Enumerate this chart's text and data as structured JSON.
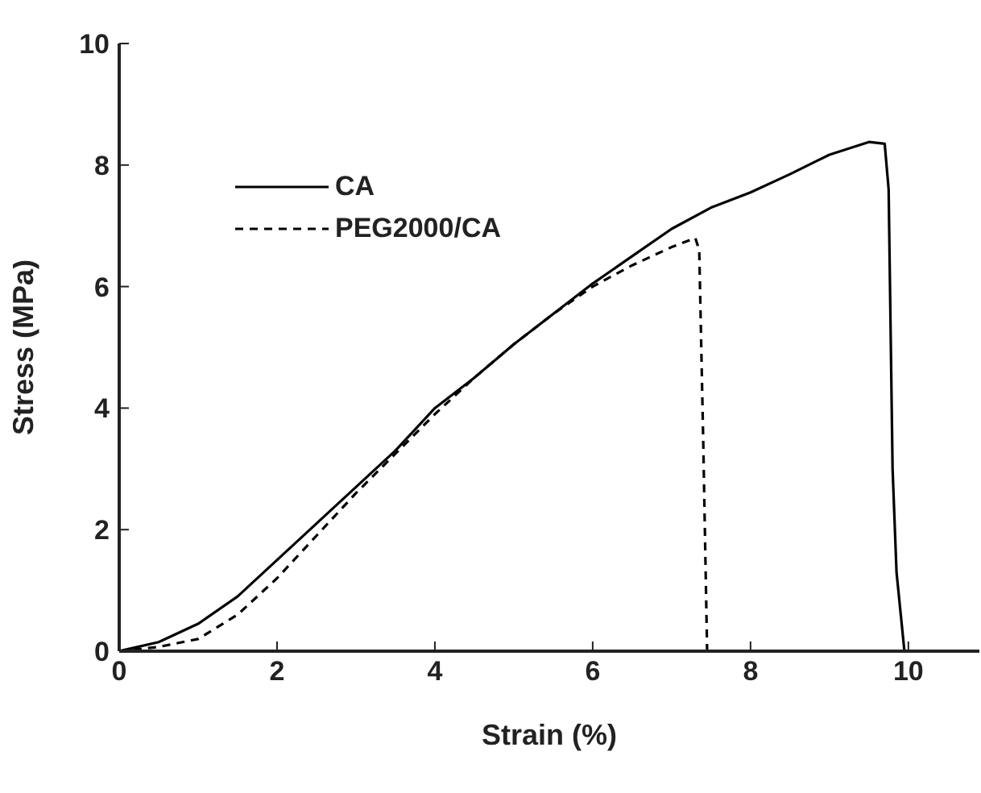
{
  "chart_data": {
    "type": "line",
    "xlabel": "Strain (%)",
    "ylabel": "Stress (MPa)",
    "xlim": [
      0,
      10.9
    ],
    "xticks": [
      0,
      2,
      4,
      6,
      8,
      10
    ],
    "ylim": [
      0,
      10
    ],
    "yticks": [
      0,
      2,
      4,
      6,
      8,
      10
    ],
    "grid": false,
    "legend": "top left",
    "marker": "none",
    "series": [
      {
        "name": "CA",
        "color": "#000000",
        "line_style": "solid",
        "x": [
          0,
          0.5,
          1,
          1.5,
          2,
          2.5,
          3,
          3.5,
          4,
          4.5,
          5,
          5.5,
          6,
          6.5,
          7,
          7.5,
          8,
          8.5,
          9,
          9.5,
          9.7,
          9.75,
          9.8,
          9.85,
          9.95
        ],
        "values": [
          0,
          0.15,
          0.45,
          0.9,
          1.5,
          2.1,
          2.7,
          3.3,
          4.0,
          4.5,
          5.05,
          5.55,
          6.05,
          6.5,
          6.95,
          7.3,
          7.55,
          7.85,
          8.17,
          8.38,
          8.35,
          7.6,
          3.0,
          1.3,
          0
        ]
      },
      {
        "name": "PEG2000/CA",
        "color": "#000000",
        "line_style": "dashed",
        "x": [
          0,
          0.5,
          1,
          1.5,
          2,
          2.5,
          3,
          3.5,
          4,
          4.5,
          5,
          5.5,
          6,
          6.5,
          7,
          7.3,
          7.35,
          7.4,
          7.45
        ],
        "values": [
          0,
          0.07,
          0.2,
          0.6,
          1.2,
          1.9,
          2.6,
          3.25,
          3.9,
          4.5,
          5.05,
          5.55,
          6.0,
          6.35,
          6.65,
          6.8,
          6.6,
          3.5,
          0
        ]
      }
    ]
  }
}
